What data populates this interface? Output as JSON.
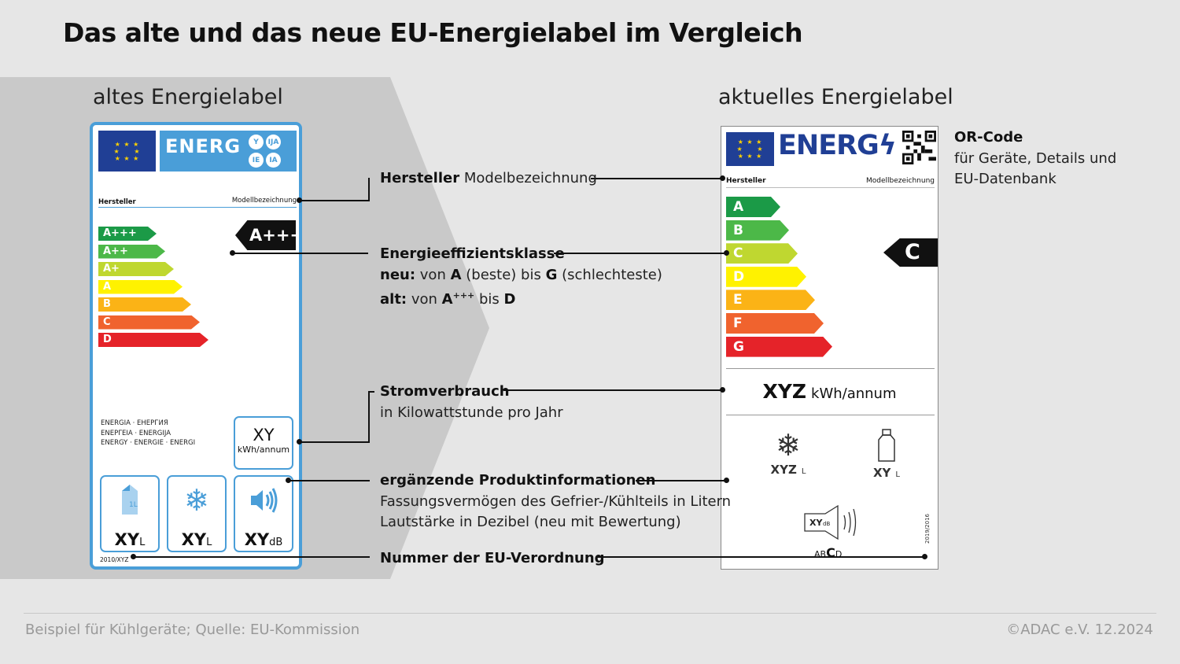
{
  "title": "Das alte und das neue EU-Energielabel im Vergleich",
  "old_label": {
    "heading": "altes Energielabel",
    "energ_word": "ENERG",
    "lang_badges": [
      "Y",
      "IJA",
      "IE",
      "IA"
    ],
    "manufacturer": "Hersteller",
    "model": "Modellbezeichnung",
    "classes": [
      {
        "label": "A+++",
        "color": "#1b9a47"
      },
      {
        "label": "A++",
        "color": "#4cb848"
      },
      {
        "label": "A+",
        "color": "#bfd730"
      },
      {
        "label": "A",
        "color": "#fff200"
      },
      {
        "label": "B",
        "color": "#fbb316"
      },
      {
        "label": "C",
        "color": "#f0632e"
      },
      {
        "label": "D",
        "color": "#e52329"
      }
    ],
    "rating": "A+++",
    "energy_words": [
      "ENERGIA · ЕНЕРГИЯ",
      "ΕΝΕΡΓΕΙΑ · ENERGIJA",
      "ENERGY · ENERGIE · ENERGI"
    ],
    "consumption": {
      "value": "XY",
      "unit": "kWh/annum"
    },
    "boxes": [
      {
        "icon": "milk-carton-icon",
        "glyph": "▮",
        "value": "XY",
        "unit": "L"
      },
      {
        "icon": "snowflake-icon",
        "glyph": "❄",
        "value": "XY",
        "unit": "L"
      },
      {
        "icon": "speaker-icon",
        "glyph": "🔊",
        "value": "XY",
        "unit": "dB"
      }
    ],
    "regulation": "2010/XYZ"
  },
  "new_label": {
    "heading": "aktuelles Energielabel",
    "energ_word": "ENERG",
    "manufacturer": "Hersteller",
    "model": "Modellbezeichnung",
    "classes": [
      {
        "label": "A",
        "color": "#1b9a47"
      },
      {
        "label": "B",
        "color": "#4cb848"
      },
      {
        "label": "C",
        "color": "#bfd730"
      },
      {
        "label": "D",
        "color": "#fff200"
      },
      {
        "label": "E",
        "color": "#fbb316"
      },
      {
        "label": "F",
        "color": "#f0632e"
      },
      {
        "label": "G",
        "color": "#e52329"
      }
    ],
    "rating": "C",
    "consumption": {
      "value": "XYZ",
      "unit": "kWh/annum"
    },
    "freezer": {
      "value": "XYZ",
      "unit": "L"
    },
    "fridge": {
      "value": "XY",
      "unit": "L"
    },
    "noise": {
      "value": "XY",
      "unit": "dB",
      "scale_pre": "AB",
      "scale_mid": "C",
      "scale_post": "D"
    },
    "regulation": "2019/2016"
  },
  "callouts": {
    "qr": {
      "title": "OR-Code",
      "line1": "für Geräte, Details und",
      "line2": "EU-Datenbank"
    },
    "manufacturer": {
      "bold": "Hersteller",
      "rest": "Modelbezeichnung"
    },
    "efficiency": {
      "title": "Energieeffizientsklasse",
      "new_label": "neu:",
      "new_text1": "von",
      "new_a": "A",
      "new_text2": "(beste) bis",
      "new_g": "G",
      "new_text3": "(schlechteste)",
      "old_label": "alt:",
      "old_text1": "von",
      "old_a": "A",
      "old_sup": "+++",
      "old_text2": "bis",
      "old_d": "D"
    },
    "consumption": {
      "title": "Stromverbrauch",
      "text": "in Kilowattstunde pro Jahr"
    },
    "product": {
      "title": "ergänzende Produktinformationen",
      "line1": "Fassungsvermögen des Gefrier-/Kühlteils in Litern",
      "line2": "Lautstärke in Dezibel (neu mit Bewertung)"
    },
    "regulation": {
      "title": "Nummer der EU-Verordnung"
    }
  },
  "footer": {
    "source": "Beispiel für Kühlgeräte; Quelle: EU-Kommission",
    "copyright": "©ADAC e.V.  12.2024"
  },
  "colors": {
    "background": "#e6e6e6",
    "chevron": "#c9c9c9",
    "old_label_blue": "#4a9ed8",
    "eu_blue": "#203f95"
  }
}
